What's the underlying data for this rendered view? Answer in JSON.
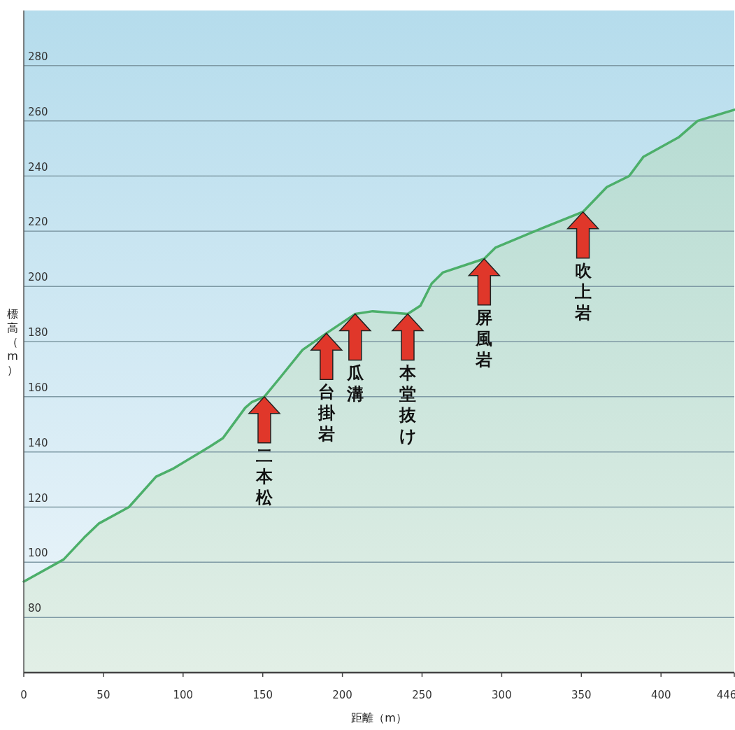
{
  "chart_data": {
    "type": "area",
    "xlabel": "距離（m）",
    "ylabel": "標高（m）",
    "x": [
      0,
      25,
      38,
      47,
      66,
      83,
      94,
      117,
      125,
      139,
      143,
      151,
      161,
      175,
      190,
      208,
      219,
      241,
      249,
      256,
      263,
      289,
      296,
      325,
      351,
      366,
      380,
      389,
      411,
      423,
      446
    ],
    "series": [
      {
        "color": "#4caf6a",
        "values": [
          93,
          101,
          109,
          114,
          120,
          131,
          134,
          142,
          145,
          156,
          158,
          160,
          167,
          177,
          183,
          190,
          191,
          190,
          193,
          201,
          205,
          210,
          214,
          221,
          227,
          236,
          240,
          247,
          254,
          260,
          264
        ]
      }
    ],
    "xlim": [
      0,
      446
    ],
    "xticks": [
      0,
      50,
      100,
      150,
      200,
      250,
      300,
      350,
      400,
      446
    ],
    "ylim": [
      60,
      300
    ],
    "yticks": [
      80,
      100,
      120,
      140,
      160,
      180,
      200,
      220,
      240,
      260,
      280
    ],
    "grid": "y",
    "annotations": [
      {
        "text": "二本松",
        "x": 151,
        "y": 160
      },
      {
        "text": "台掛岩",
        "x": 190,
        "y": 183
      },
      {
        "text": "瓜溝",
        "x": 208,
        "y": 190
      },
      {
        "text": "本堂抜け",
        "x": 241,
        "y": 190
      },
      {
        "text": "屏風岩",
        "x": 289,
        "y": 210
      },
      {
        "text": "吹上岩",
        "x": 351,
        "y": 227
      }
    ]
  }
}
